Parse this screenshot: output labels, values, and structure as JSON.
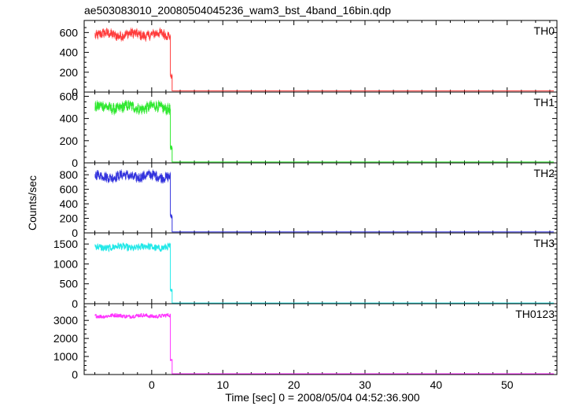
{
  "chart_data": {
    "type": "line",
    "title": "ae503083010_20080504045236_wam3_bst_4band_16bin.qdp",
    "xlabel": "Time [sec] 0 = 2008/05/04 04:52:36.900",
    "ylabel": "Counts/sec",
    "xlim": [
      -9.5,
      57
    ],
    "xticks": [
      0,
      10,
      20,
      30,
      40,
      50
    ],
    "panels": [
      {
        "name": "TH0",
        "color": "#ff3b3b",
        "ylim": [
          0,
          690
        ],
        "yticks": [
          0,
          200,
          400,
          600
        ],
        "pre_level": 580,
        "noise": 40,
        "step_time": 2.6,
        "step_level": 160,
        "post_level": 12
      },
      {
        "name": "TH1",
        "color": "#2ee82e",
        "ylim": [
          0,
          610
        ],
        "yticks": [
          0,
          200,
          400,
          600
        ],
        "pre_level": 500,
        "noise": 40,
        "step_time": 2.6,
        "step_level": 130,
        "post_level": 8
      },
      {
        "name": "TH2",
        "color": "#3333dd",
        "ylim": [
          0,
          920
        ],
        "yticks": [
          0,
          200,
          400,
          600,
          800
        ],
        "pre_level": 780,
        "noise": 55,
        "step_time": 2.6,
        "step_level": 230,
        "post_level": 14
      },
      {
        "name": "TH3",
        "color": "#22e8e8",
        "ylim": [
          0,
          1700
        ],
        "yticks": [
          0,
          500,
          1000,
          1500
        ],
        "pre_level": 1420,
        "noise": 70,
        "step_time": 2.6,
        "step_level": 330,
        "post_level": 18
      },
      {
        "name": "TH0123",
        "color": "#ff33ff",
        "ylim": [
          0,
          3750
        ],
        "yticks": [
          0,
          1000,
          2000,
          3000
        ],
        "pre_level": 3250,
        "noise": 90,
        "step_time": 2.6,
        "step_level": 800,
        "post_level": 45
      }
    ]
  }
}
